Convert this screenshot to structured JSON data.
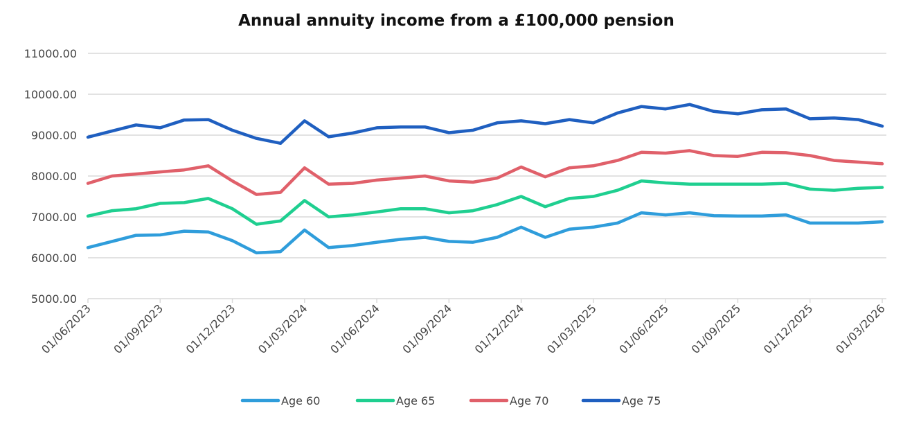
{
  "chart_data": {
    "type": "line",
    "title": "Annual annuity income from a £100,000 pension",
    "xlabel": "",
    "ylabel": "",
    "ylim": [
      5000,
      11000
    ],
    "y_ticks": [
      "5000.00",
      "6000.00",
      "7000.00",
      "8000.00",
      "9000.00",
      "10000.00",
      "11000.00"
    ],
    "x_tick_labels": [
      "01/06/2023",
      "01/09/2023",
      "01/12/2023",
      "01/03/2024",
      "01/06/2024",
      "01/09/2024",
      "01/12/2024",
      "01/03/2025",
      "01/06/2025",
      "01/09/2025",
      "01/12/2025",
      "01/03/2026"
    ],
    "grid": "horizontal",
    "legend_position": "bottom",
    "x": [
      "01/06/2023",
      "01/07/2023",
      "01/08/2023",
      "01/09/2023",
      "01/10/2023",
      "01/11/2023",
      "01/12/2023",
      "01/01/2024",
      "01/02/2024",
      "01/03/2024",
      "01/04/2024",
      "01/05/2024",
      "01/06/2024",
      "01/07/2024",
      "01/08/2024",
      "01/09/2024",
      "01/10/2024",
      "01/11/2024",
      "01/12/2024",
      "01/01/2025",
      "01/02/2025",
      "01/03/2025",
      "01/04/2025",
      "01/05/2025",
      "01/06/2025",
      "01/07/2025",
      "01/08/2025",
      "01/09/2025",
      "01/10/2025",
      "01/11/2025",
      "01/12/2025",
      "01/01/2026",
      "01/02/2026",
      "01/03/2026"
    ],
    "series": [
      {
        "name": "Age 60",
        "color": "#2f9ddb",
        "values": [
          6250,
          6400,
          6550,
          6560,
          6650,
          6630,
          6420,
          6120,
          6150,
          6680,
          6250,
          6300,
          6380,
          6450,
          6500,
          6400,
          6380,
          6500,
          6750,
          6500,
          6700,
          6750,
          6850,
          7100,
          7050,
          7100,
          7030,
          7020,
          7020,
          7050,
          6850,
          6850,
          6850,
          6880
        ]
      },
      {
        "name": "Age 65",
        "color": "#1fcf90",
        "values": [
          7020,
          7150,
          7200,
          7330,
          7350,
          7450,
          7200,
          6820,
          6900,
          7400,
          7000,
          7050,
          7120,
          7200,
          7200,
          7100,
          7150,
          7300,
          7500,
          7250,
          7450,
          7500,
          7650,
          7880,
          7830,
          7800,
          7800,
          7800,
          7800,
          7820,
          7680,
          7650,
          7700,
          7720
        ]
      },
      {
        "name": "Age 70",
        "color": "#e0606a",
        "values": [
          7820,
          8000,
          8050,
          8100,
          8150,
          8250,
          7880,
          7550,
          7600,
          8200,
          7800,
          7820,
          7900,
          7950,
          8000,
          7880,
          7850,
          7950,
          8220,
          7980,
          8200,
          8250,
          8380,
          8580,
          8560,
          8620,
          8500,
          8480,
          8580,
          8570,
          8500,
          8380,
          8340,
          8300
        ]
      },
      {
        "name": "Age 75",
        "color": "#1f5fc0",
        "values": [
          8950,
          9100,
          9250,
          9180,
          9370,
          9380,
          9120,
          8920,
          8800,
          9350,
          8960,
          9050,
          9180,
          9200,
          9200,
          9060,
          9120,
          9300,
          9350,
          9280,
          9380,
          9300,
          9540,
          9700,
          9640,
          9750,
          9580,
          9520,
          9620,
          9640,
          9400,
          9420,
          9380,
          9220
        ]
      }
    ]
  }
}
